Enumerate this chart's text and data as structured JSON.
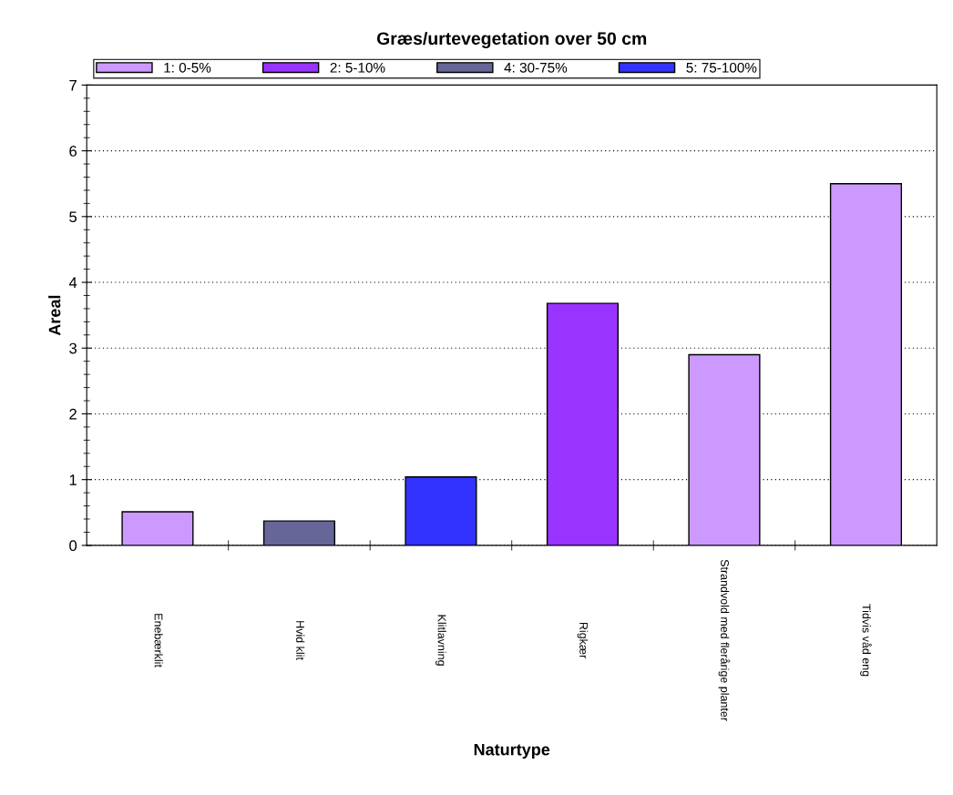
{
  "chart_data": {
    "type": "bar",
    "title": "Græs/urtevegetation over 50 cm",
    "xlabel": "Naturtype",
    "ylabel": "Areal",
    "categories": [
      "Enebærklit",
      "Hvid klit",
      "Klitlavning",
      "Rigkær",
      "Strandvold med flerårige planter",
      "Tidvis våd eng"
    ],
    "series": [
      {
        "name": "1: 0-5%",
        "color": "#cc99ff",
        "values": [
          0.51,
          null,
          null,
          null,
          2.9,
          5.5
        ]
      },
      {
        "name": "2: 5-10%",
        "color": "#9933ff",
        "values": [
          null,
          null,
          null,
          3.68,
          null,
          null
        ]
      },
      {
        "name": "4: 30-75%",
        "color": "#666699",
        "values": [
          null,
          0.37,
          null,
          null,
          null,
          null
        ]
      },
      {
        "name": "5: 75-100%",
        "color": "#3333ff",
        "values": [
          null,
          null,
          1.04,
          null,
          null,
          null
        ]
      }
    ],
    "ylim": [
      0,
      7
    ],
    "yticks": [
      0,
      1,
      2,
      3,
      4,
      5,
      6,
      7
    ],
    "grid": "y",
    "legend": "top"
  }
}
